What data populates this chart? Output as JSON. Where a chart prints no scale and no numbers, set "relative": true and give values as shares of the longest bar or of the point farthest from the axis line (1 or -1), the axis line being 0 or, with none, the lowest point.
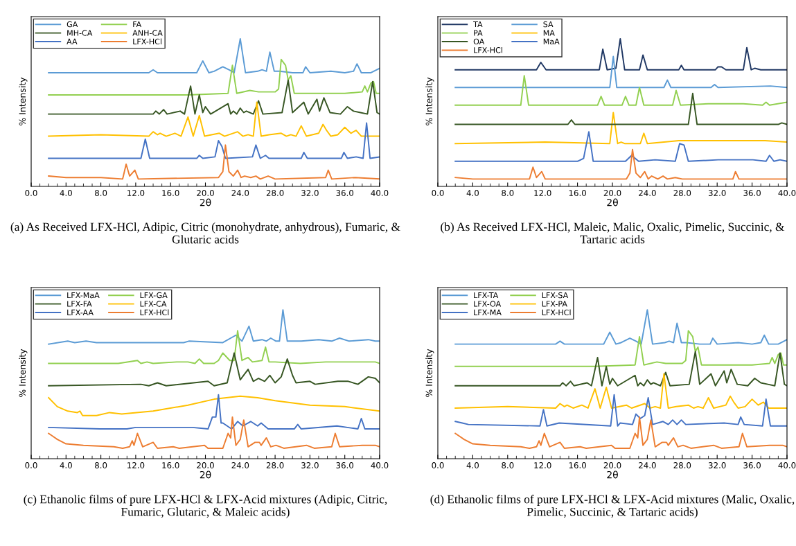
{
  "chart_data": [
    {
      "type": "line",
      "relative": true,
      "xlabel": "2θ",
      "ylabel": "% Intensity",
      "legend": "top left",
      "xlim": [
        0,
        40
      ],
      "xticks": [
        {
          "value": 0,
          "label": "0.0"
        },
        {
          "value": 4,
          "label": "4.0"
        },
        {
          "value": 8,
          "label": "8.0"
        },
        {
          "value": 12,
          "label": "12.0"
        },
        {
          "value": 16,
          "label": "16.0"
        },
        {
          "value": 20,
          "label": "20.0"
        },
        {
          "value": 24,
          "label": "24.0"
        },
        {
          "value": 28,
          "label": "28.0"
        },
        {
          "value": 32,
          "label": "32.0"
        },
        {
          "value": 36,
          "label": "36.0"
        },
        {
          "value": 40,
          "label": "40.0"
        }
      ],
      "annotations": [
        "(a) As Received LFX-HCl, Adipic, Citric (monohydrate, anhydrous), Fumaric, & Glutaric acids"
      ],
      "series": [
        {
          "name": "GA",
          "color": "#5b9bd5",
          "x": [
            2,
            8,
            13.5,
            14.0,
            14.5,
            19.0,
            19.7,
            20.4,
            21.0,
            22.0,
            22.7,
            23.3,
            24.0,
            24.6,
            26.0,
            26.5,
            27.0,
            27.4,
            27.9,
            28.5,
            30.0,
            31.2,
            31.5,
            32.0,
            34.4,
            36.0,
            37.0,
            37.4,
            37.9,
            39.0,
            40
          ],
          "values": [
            0.77,
            0.77,
            0.77,
            0.79,
            0.77,
            0.77,
            0.85,
            0.77,
            0.78,
            0.81,
            0.79,
            0.77,
            1.0,
            0.77,
            0.78,
            0.79,
            0.78,
            0.91,
            0.78,
            0.78,
            0.77,
            0.77,
            0.81,
            0.77,
            0.78,
            0.77,
            0.78,
            0.83,
            0.77,
            0.77,
            0.8
          ]
        },
        {
          "name": "FA",
          "color": "#92d050",
          "x": [
            2,
            8,
            18,
            22.6,
            23.1,
            23.6,
            25.1,
            26.1,
            27.1,
            28.0,
            28.4,
            28.7,
            29.2,
            29.5,
            29.8,
            30.2,
            33,
            36,
            38.0,
            38.3,
            38.6,
            39.0,
            39.3,
            39.6,
            40
          ],
          "values": [
            0.62,
            0.62,
            0.62,
            0.63,
            0.82,
            0.63,
            0.65,
            0.64,
            0.64,
            0.64,
            0.66,
            0.86,
            0.82,
            0.72,
            0.75,
            0.63,
            0.63,
            0.63,
            0.64,
            0.68,
            0.64,
            0.7,
            0.71,
            0.63,
            0.63
          ]
        },
        {
          "name": "MH-CA",
          "color": "#375623",
          "x": [
            2,
            11,
            14.0,
            14.3,
            14.7,
            15.2,
            15.6,
            17.1,
            17.6,
            18.3,
            18.8,
            19.3,
            19.7,
            20.0,
            20.6,
            22.6,
            22.9,
            23.2,
            23.6,
            24.0,
            24.4,
            24.7,
            25.5,
            26.1,
            26.6,
            28.8,
            29.5,
            30.0,
            31.3,
            31.8,
            32.8,
            33.1,
            33.6,
            34.3,
            35.5,
            36.3,
            37.0,
            37.8,
            38.6,
            39.2,
            39.7,
            40
          ],
          "values": [
            0.49,
            0.49,
            0.49,
            0.51,
            0.49,
            0.52,
            0.49,
            0.51,
            0.49,
            0.68,
            0.49,
            0.62,
            0.5,
            0.54,
            0.49,
            0.56,
            0.49,
            0.51,
            0.49,
            0.53,
            0.5,
            0.51,
            0.49,
            0.58,
            0.49,
            0.5,
            0.72,
            0.5,
            0.57,
            0.49,
            0.59,
            0.51,
            0.6,
            0.5,
            0.49,
            0.54,
            0.51,
            0.5,
            0.49,
            0.71,
            0.5,
            0.49
          ]
        },
        {
          "name": "ANH-CA",
          "color": "#ffc000",
          "x": [
            2,
            8,
            13.5,
            14.0,
            14.5,
            14.8,
            15.5,
            16.5,
            17.2,
            18.0,
            18.6,
            19.3,
            19.9,
            21.6,
            22.2,
            23.7,
            24.3,
            24.9,
            25.5,
            25.9,
            26.4,
            27.3,
            28.7,
            29.3,
            29.8,
            30.4,
            31.0,
            31.6,
            33.0,
            33.5,
            33.9,
            34.4,
            35.2,
            36.0,
            36.7,
            37.3,
            37.9,
            40
          ],
          "values": [
            0.34,
            0.35,
            0.34,
            0.37,
            0.35,
            0.36,
            0.34,
            0.36,
            0.34,
            0.47,
            0.34,
            0.48,
            0.34,
            0.36,
            0.34,
            0.37,
            0.34,
            0.35,
            0.34,
            0.57,
            0.34,
            0.35,
            0.36,
            0.34,
            0.35,
            0.34,
            0.41,
            0.34,
            0.36,
            0.42,
            0.38,
            0.34,
            0.35,
            0.4,
            0.36,
            0.38,
            0.34,
            0.34
          ]
        },
        {
          "name": "AA",
          "color": "#4472c4",
          "x": [
            2,
            12.6,
            13.1,
            13.6,
            19.0,
            19.3,
            19.7,
            21.1,
            21.5,
            21.9,
            22.3,
            25.4,
            25.8,
            26.3,
            26.9,
            27.3,
            31.0,
            31.3,
            31.7,
            35.6,
            35.9,
            36.3,
            37.3,
            38.1,
            38.5,
            38.9,
            40
          ],
          "values": [
            0.19,
            0.19,
            0.32,
            0.19,
            0.19,
            0.21,
            0.19,
            0.2,
            0.31,
            0.27,
            0.19,
            0.2,
            0.28,
            0.19,
            0.21,
            0.19,
            0.19,
            0.23,
            0.19,
            0.19,
            0.23,
            0.19,
            0.2,
            0.19,
            0.43,
            0.19,
            0.2
          ]
        },
        {
          "name": "LFX-HCl",
          "color": "#ed7d31",
          "x": [
            2,
            4,
            8,
            10.5,
            10.9,
            11.3,
            11.6,
            11.9,
            12.3,
            21.5,
            22.0,
            22.3,
            22.7,
            23.2,
            23.7,
            24.1,
            24.5,
            25.2,
            25.8,
            26.3,
            27.2,
            28,
            33.8,
            34.1,
            34.5,
            37.2,
            40
          ],
          "values": [
            0.07,
            0.06,
            0.06,
            0.05,
            0.15,
            0.07,
            0.09,
            0.11,
            0.05,
            0.06,
            0.1,
            0.28,
            0.1,
            0.07,
            0.11,
            0.06,
            0.07,
            0.06,
            0.07,
            0.05,
            0.07,
            0.05,
            0.06,
            0.11,
            0.05,
            0.06,
            0.05
          ]
        }
      ]
    },
    {
      "type": "line",
      "relative": true,
      "xlabel": "2θ",
      "ylabel": "% Intensity",
      "legend": "top left",
      "xlim": [
        0,
        40
      ],
      "xticks": [
        {
          "value": 0,
          "label": "0.0"
        },
        {
          "value": 4,
          "label": "4.0"
        },
        {
          "value": 8,
          "label": "8.0"
        },
        {
          "value": 12,
          "label": "12.0"
        },
        {
          "value": 16,
          "label": "16.0"
        },
        {
          "value": 20,
          "label": "20.0"
        },
        {
          "value": 24,
          "label": "24.0"
        },
        {
          "value": 28,
          "label": "28.0"
        },
        {
          "value": 32,
          "label": "32.0"
        },
        {
          "value": 36,
          "label": "36.0"
        },
        {
          "value": 40,
          "label": "40.0"
        }
      ],
      "annotations": [
        "(b) As Received LFX-HCl, Maleic, Malic, Oxalic, Pimelic, Succinic, & Tartaric acids"
      ],
      "series": [
        {
          "name": "TA",
          "color": "#203864",
          "x": [
            2,
            11.3,
            11.8,
            12.4,
            18.5,
            18.9,
            19.4,
            20.4,
            20.9,
            21.4,
            23.1,
            23.5,
            24.0,
            27.6,
            27.9,
            28.2,
            31.8,
            32.1,
            32.5,
            33,
            35.0,
            35.4,
            35.9,
            36.3,
            37,
            40
          ],
          "values": [
            0.79,
            0.79,
            0.84,
            0.79,
            0.79,
            0.93,
            0.79,
            0.8,
            1.0,
            0.79,
            0.79,
            0.89,
            0.79,
            0.79,
            0.82,
            0.79,
            0.79,
            0.81,
            0.81,
            0.79,
            0.79,
            0.94,
            0.79,
            0.8,
            0.79,
            0.79
          ]
        },
        {
          "name": "SA",
          "color": "#5b9bd5",
          "x": [
            2,
            19.7,
            20.1,
            20.5,
            25.9,
            26.3,
            26.7,
            31.3,
            31.7,
            32.1,
            38.1,
            40
          ],
          "values": [
            0.67,
            0.67,
            0.88,
            0.67,
            0.67,
            0.72,
            0.67,
            0.67,
            0.69,
            0.67,
            0.68,
            0.67
          ]
        },
        {
          "name": "PA",
          "color": "#92d050",
          "x": [
            2,
            9.5,
            9.9,
            10.4,
            18.3,
            18.7,
            19.1,
            21.1,
            21.5,
            21.9,
            22.7,
            23.1,
            23.6,
            26.9,
            27.3,
            27.8,
            31.0,
            35.0,
            37.2,
            37.6,
            38.0,
            40
          ],
          "values": [
            0.55,
            0.55,
            0.75,
            0.55,
            0.55,
            0.61,
            0.55,
            0.55,
            0.61,
            0.55,
            0.55,
            0.67,
            0.55,
            0.55,
            0.65,
            0.55,
            0.56,
            0.56,
            0.55,
            0.57,
            0.55,
            0.57
          ]
        },
        {
          "name": "MA",
          "color": "#ffc000",
          "x": [
            2,
            12.3,
            19.7,
            20.1,
            20.6,
            21.0,
            21.4,
            23.2,
            23.6,
            24.0,
            27.6,
            32.8,
            35.8,
            37.5,
            40
          ],
          "values": [
            0.29,
            0.3,
            0.29,
            0.5,
            0.29,
            0.3,
            0.29,
            0.29,
            0.36,
            0.29,
            0.31,
            0.31,
            0.31,
            0.31,
            0.3
          ]
        },
        {
          "name": "OA",
          "color": "#375623",
          "x": [
            2,
            14.9,
            15.3,
            15.7,
            28.7,
            29.2,
            29.7,
            31,
            39.0,
            39.4,
            40
          ],
          "values": [
            0.42,
            0.42,
            0.45,
            0.42,
            0.42,
            0.63,
            0.42,
            0.42,
            0.42,
            0.43,
            0.42
          ]
        },
        {
          "name": "MaA",
          "color": "#4472c4",
          "x": [
            2,
            16.0,
            16.7,
            17.3,
            17.8,
            21.5,
            22.2,
            23.0,
            24.9,
            27.2,
            27.7,
            28.2,
            28.7,
            32.1,
            33.6,
            36.1,
            37.6,
            38.0,
            38.5,
            39.2,
            40
          ],
          "values": [
            0.17,
            0.17,
            0.19,
            0.37,
            0.17,
            0.17,
            0.21,
            0.17,
            0.18,
            0.17,
            0.29,
            0.28,
            0.17,
            0.18,
            0.18,
            0.18,
            0.17,
            0.21,
            0.17,
            0.18,
            0.17
          ]
        },
        {
          "name": "LFX-HCl",
          "color": "#ed7d31",
          "x": [
            2,
            4,
            8,
            10.5,
            10.9,
            11.3,
            11.6,
            11.9,
            12.3,
            21.6,
            22.0,
            22.3,
            22.7,
            23.2,
            23.7,
            24.1,
            24.5,
            25.2,
            25.8,
            26.3,
            27.2,
            28,
            33.8,
            34.1,
            34.5,
            37.2,
            40
          ],
          "values": [
            0.06,
            0.05,
            0.05,
            0.05,
            0.13,
            0.06,
            0.08,
            0.1,
            0.05,
            0.05,
            0.09,
            0.25,
            0.09,
            0.06,
            0.1,
            0.05,
            0.07,
            0.05,
            0.07,
            0.05,
            0.06,
            0.05,
            0.05,
            0.1,
            0.05,
            0.05,
            0.05
          ]
        }
      ]
    },
    {
      "type": "line",
      "relative": true,
      "xlabel": "2θ",
      "ylabel": "% Intensity",
      "legend": "top left",
      "xlim": [
        0,
        40
      ],
      "xticks": [
        {
          "value": 0,
          "label": "0.0"
        },
        {
          "value": 4,
          "label": "4.0"
        },
        {
          "value": 8,
          "label": "8.0"
        },
        {
          "value": 12,
          "label": "12.0"
        },
        {
          "value": 16,
          "label": "16.0"
        },
        {
          "value": 20,
          "label": "20.0"
        },
        {
          "value": 24,
          "label": "24.0"
        },
        {
          "value": 28,
          "label": "28.0"
        },
        {
          "value": 32,
          "label": "32.0"
        },
        {
          "value": 36,
          "label": "36.0"
        },
        {
          "value": 40,
          "label": "40.0"
        }
      ],
      "annotations": [
        "(c) Ethanolic films of pure LFX-HCl & LFX-Acid mixtures (Adipic, Citric, Fumaric, Glutaric, & Maleic acids)"
      ],
      "series": [
        {
          "name": "LFX-MaA",
          "color": "#5b9bd5",
          "x": [
            2,
            4.2,
            5.0,
            6.3,
            7.5,
            12.8,
            17.5,
            18.1,
            22.0,
            23.5,
            24.2,
            25.0,
            25.5,
            26.5,
            27.0,
            27.5,
            28.1,
            28.5,
            28.9,
            29.4,
            31,
            33.0,
            34.5,
            35.4,
            36.5,
            38.7,
            39.5,
            40
          ],
          "values": [
            0.77,
            0.79,
            0.78,
            0.79,
            0.78,
            0.78,
            0.78,
            0.79,
            0.78,
            0.83,
            0.79,
            0.89,
            0.79,
            0.8,
            0.79,
            0.81,
            0.79,
            0.79,
            1.0,
            0.79,
            0.79,
            0.8,
            0.79,
            0.81,
            0.79,
            0.8,
            0.79,
            0.79
          ]
        },
        {
          "name": "LFX-GA",
          "color": "#92d050",
          "x": [
            2,
            8,
            10,
            12.2,
            12.6,
            13.3,
            14,
            16.7,
            18.0,
            18.8,
            19.3,
            19.8,
            21.0,
            21.5,
            22.0,
            22.8,
            23.3,
            23.7,
            24.2,
            24.9,
            25.4,
            26.5,
            26.9,
            27.3,
            28.0,
            30.9,
            33.8,
            37.0,
            39.5,
            40
          ],
          "values": [
            0.64,
            0.64,
            0.64,
            0.66,
            0.64,
            0.65,
            0.64,
            0.65,
            0.65,
            0.64,
            0.67,
            0.64,
            0.64,
            0.66,
            0.71,
            0.66,
            0.66,
            0.86,
            0.66,
            0.68,
            0.65,
            0.66,
            0.75,
            0.65,
            0.65,
            0.64,
            0.65,
            0.65,
            0.65,
            0.64
          ]
        },
        {
          "name": "LFX-FA",
          "color": "#375623",
          "x": [
            2,
            12.6,
            13.5,
            14.5,
            15.5,
            20.3,
            21.0,
            22.5,
            23.3,
            24.0,
            24.9,
            25.5,
            26.1,
            26.8,
            27.4,
            28.0,
            28.7,
            29.4,
            30.0,
            30.4,
            32.0,
            32.6,
            35.2,
            36.4,
            37.5,
            38.7,
            39.5,
            40
          ],
          "values": [
            0.49,
            0.5,
            0.49,
            0.51,
            0.49,
            0.52,
            0.49,
            0.51,
            0.71,
            0.53,
            0.6,
            0.52,
            0.54,
            0.52,
            0.56,
            0.51,
            0.55,
            0.67,
            0.56,
            0.51,
            0.52,
            0.5,
            0.52,
            0.52,
            0.5,
            0.55,
            0.54,
            0.51
          ]
        },
        {
          "name": "LFX-CA",
          "color": "#ffc000",
          "x": [
            2,
            3.0,
            4.2,
            5.3,
            5.6,
            5.9,
            7.5,
            9.0,
            10.4,
            14.0,
            18.0,
            21.0,
            24.0,
            26.0,
            28.0,
            32.0,
            36.0,
            40
          ],
          "values": [
            0.41,
            0.35,
            0.32,
            0.31,
            0.32,
            0.29,
            0.29,
            0.31,
            0.3,
            0.32,
            0.36,
            0.4,
            0.42,
            0.41,
            0.39,
            0.36,
            0.35,
            0.32
          ]
        },
        {
          "name": "LFX-AA",
          "color": "#4472c4",
          "x": [
            2,
            7.9,
            11.0,
            12.0,
            13.2,
            18.5,
            20.3,
            20.8,
            21.2,
            21.5,
            21.8,
            22.0,
            23.0,
            23.7,
            24.3,
            25.2,
            26.0,
            26.4,
            27.2,
            30.2,
            30.6,
            31.0,
            35.1,
            37.5,
            37.9,
            38.3,
            40
          ],
          "values": [
            0.21,
            0.2,
            0.2,
            0.21,
            0.21,
            0.21,
            0.2,
            0.28,
            0.28,
            0.43,
            0.24,
            0.24,
            0.2,
            0.25,
            0.22,
            0.25,
            0.22,
            0.24,
            0.2,
            0.2,
            0.23,
            0.2,
            0.22,
            0.2,
            0.27,
            0.2,
            0.2
          ]
        },
        {
          "name": "LFX-HCl",
          "color": "#ed7d31",
          "x": [
            2,
            2.5,
            3.0,
            4.0,
            6.0,
            9.5,
            10.5,
            11.3,
            11.6,
            11.8,
            12.2,
            12.8,
            14.0,
            14.5,
            16.3,
            17,
            19.9,
            20.3,
            22.0,
            22.6,
            22.9,
            23.1,
            23.5,
            24.0,
            24.4,
            24.9,
            25.7,
            26.2,
            26.4,
            27.0,
            27.5,
            28.1,
            29.0,
            31.6,
            32.5,
            34.5,
            34.9,
            35.4,
            38.0,
            39.5,
            40
          ],
          "values": [
            0.17,
            0.15,
            0.13,
            0.1,
            0.09,
            0.08,
            0.07,
            0.08,
            0.12,
            0.09,
            0.17,
            0.08,
            0.11,
            0.07,
            0.08,
            0.07,
            0.09,
            0.07,
            0.07,
            0.17,
            0.14,
            0.28,
            0.09,
            0.13,
            0.26,
            0.08,
            0.11,
            0.11,
            0.09,
            0.14,
            0.08,
            0.09,
            0.07,
            0.09,
            0.07,
            0.08,
            0.17,
            0.08,
            0.09,
            0.09,
            0.08
          ]
        }
      ]
    },
    {
      "type": "line",
      "relative": true,
      "xlabel": "2θ",
      "ylabel": "% Intensity",
      "legend": "top left",
      "xlim": [
        0,
        40
      ],
      "xticks": [
        {
          "value": 0,
          "label": "0.0"
        },
        {
          "value": 4,
          "label": "4.0"
        },
        {
          "value": 8,
          "label": "8.0"
        },
        {
          "value": 12,
          "label": "12.0"
        },
        {
          "value": 16,
          "label": "16.0"
        },
        {
          "value": 20,
          "label": "20.0"
        },
        {
          "value": 24,
          "label": "24.0"
        },
        {
          "value": 28,
          "label": "28.0"
        },
        {
          "value": 32,
          "label": "32.0"
        },
        {
          "value": 36,
          "label": "36.0"
        },
        {
          "value": 40,
          "label": "40.0"
        }
      ],
      "annotations": [
        "(d) Ethanolic films of pure LFX-HCl & LFX-Acid mixtures (Malic, Oxalic, Pimelic, Succinic, & Tartaric acids)"
      ],
      "series": [
        {
          "name": "LFX-TA",
          "color": "#5b9bd5",
          "x": [
            2,
            8,
            13.5,
            14.0,
            14.5,
            19.0,
            19.7,
            20.4,
            21.0,
            22.0,
            22.7,
            23.3,
            24.0,
            24.6,
            26.0,
            26.5,
            27.0,
            27.4,
            27.9,
            28.5,
            30.0,
            31.2,
            31.5,
            32.0,
            34.4,
            36.0,
            37.0,
            37.4,
            37.9,
            39.0,
            40
          ],
          "values": [
            0.77,
            0.77,
            0.77,
            0.79,
            0.77,
            0.77,
            0.85,
            0.77,
            0.78,
            0.81,
            0.79,
            0.77,
            1.0,
            0.77,
            0.78,
            0.79,
            0.78,
            0.91,
            0.78,
            0.78,
            0.77,
            0.77,
            0.81,
            0.77,
            0.78,
            0.77,
            0.78,
            0.83,
            0.77,
            0.77,
            0.8
          ]
        },
        {
          "name": "LFX-SA",
          "color": "#92d050",
          "x": [
            2,
            8,
            18,
            22.6,
            23.1,
            23.6,
            25.1,
            26.1,
            27.1,
            28.0,
            28.4,
            28.7,
            29.2,
            29.5,
            29.8,
            30.2,
            33,
            36,
            38.0,
            38.3,
            38.6,
            39.0,
            39.3,
            39.6,
            40
          ],
          "values": [
            0.62,
            0.62,
            0.62,
            0.63,
            0.82,
            0.63,
            0.65,
            0.64,
            0.64,
            0.64,
            0.66,
            0.86,
            0.82,
            0.72,
            0.75,
            0.63,
            0.63,
            0.63,
            0.64,
            0.68,
            0.64,
            0.7,
            0.71,
            0.63,
            0.63
          ]
        },
        {
          "name": "LFX-OA",
          "color": "#375623",
          "x": [
            2,
            11,
            14.0,
            14.3,
            14.7,
            15.2,
            15.6,
            17.1,
            17.6,
            18.3,
            18.8,
            19.3,
            19.7,
            20.0,
            20.6,
            22.6,
            22.9,
            23.2,
            23.6,
            24.0,
            24.4,
            24.7,
            25.5,
            26.1,
            26.6,
            28.8,
            29.5,
            30.0,
            31.3,
            31.8,
            32.8,
            33.1,
            33.6,
            34.3,
            35.5,
            36.3,
            37.0,
            37.8,
            38.6,
            39.2,
            39.7,
            40
          ],
          "values": [
            0.49,
            0.49,
            0.49,
            0.51,
            0.49,
            0.52,
            0.49,
            0.51,
            0.49,
            0.68,
            0.49,
            0.62,
            0.5,
            0.54,
            0.49,
            0.56,
            0.49,
            0.51,
            0.49,
            0.53,
            0.5,
            0.51,
            0.49,
            0.58,
            0.49,
            0.5,
            0.72,
            0.5,
            0.57,
            0.49,
            0.59,
            0.51,
            0.6,
            0.5,
            0.49,
            0.54,
            0.51,
            0.5,
            0.49,
            0.71,
            0.5,
            0.49
          ]
        },
        {
          "name": "LFX-PA",
          "color": "#ffc000",
          "x": [
            2,
            8,
            13.5,
            14.0,
            14.5,
            14.8,
            15.5,
            16.5,
            17.2,
            18.0,
            18.6,
            19.3,
            19.9,
            21.6,
            22.2,
            23.7,
            24.3,
            24.9,
            25.5,
            25.9,
            26.4,
            27.3,
            28.7,
            29.3,
            29.8,
            30.4,
            31.0,
            31.6,
            33.0,
            33.5,
            33.9,
            34.4,
            35.2,
            36.0,
            36.7,
            37.3,
            37.9,
            40
          ],
          "values": [
            0.34,
            0.35,
            0.34,
            0.37,
            0.35,
            0.36,
            0.34,
            0.36,
            0.34,
            0.47,
            0.34,
            0.48,
            0.34,
            0.36,
            0.34,
            0.37,
            0.34,
            0.35,
            0.34,
            0.57,
            0.34,
            0.35,
            0.36,
            0.34,
            0.35,
            0.34,
            0.41,
            0.34,
            0.36,
            0.42,
            0.38,
            0.34,
            0.35,
            0.4,
            0.36,
            0.38,
            0.34,
            0.34
          ]
        },
        {
          "name": "LFX-MA",
          "color": "#4472c4",
          "x": [
            2,
            2.8,
            3.5,
            11.7,
            12.1,
            12.5,
            13.9,
            19.8,
            20.2,
            20.6,
            20.9,
            22.3,
            22.7,
            23.2,
            23.7,
            24.1,
            24.6,
            25.8,
            26.4,
            26.9,
            27.4,
            27.9,
            28.4,
            32.8,
            34.4,
            34.7,
            35.1,
            37.2,
            37.6,
            38.1,
            40
          ],
          "values": [
            0.25,
            0.24,
            0.23,
            0.22,
            0.33,
            0.22,
            0.24,
            0.22,
            0.43,
            0.22,
            0.24,
            0.23,
            0.3,
            0.27,
            0.29,
            0.41,
            0.23,
            0.25,
            0.23,
            0.26,
            0.23,
            0.26,
            0.23,
            0.24,
            0.23,
            0.28,
            0.23,
            0.22,
            0.4,
            0.22,
            0.22
          ]
        },
        {
          "name": "LFX-HCl",
          "color": "#ed7d31",
          "x": [
            2,
            2.5,
            3.0,
            4.0,
            6.0,
            9.5,
            10.5,
            11.3,
            11.6,
            11.8,
            12.2,
            12.8,
            14.0,
            14.5,
            16.3,
            17,
            19.9,
            20.3,
            22.0,
            22.6,
            22.9,
            23.1,
            23.5,
            24.0,
            24.4,
            24.9,
            25.7,
            26.2,
            26.4,
            27.0,
            27.5,
            28.1,
            29.0,
            31.6,
            32.5,
            34.5,
            34.9,
            35.4,
            38.0,
            39.5,
            40
          ],
          "values": [
            0.17,
            0.15,
            0.13,
            0.1,
            0.09,
            0.08,
            0.07,
            0.08,
            0.12,
            0.09,
            0.17,
            0.08,
            0.11,
            0.07,
            0.08,
            0.07,
            0.09,
            0.07,
            0.07,
            0.17,
            0.14,
            0.28,
            0.09,
            0.13,
            0.26,
            0.08,
            0.11,
            0.11,
            0.09,
            0.14,
            0.08,
            0.09,
            0.07,
            0.09,
            0.07,
            0.08,
            0.17,
            0.08,
            0.09,
            0.09,
            0.08
          ]
        }
      ]
    }
  ]
}
